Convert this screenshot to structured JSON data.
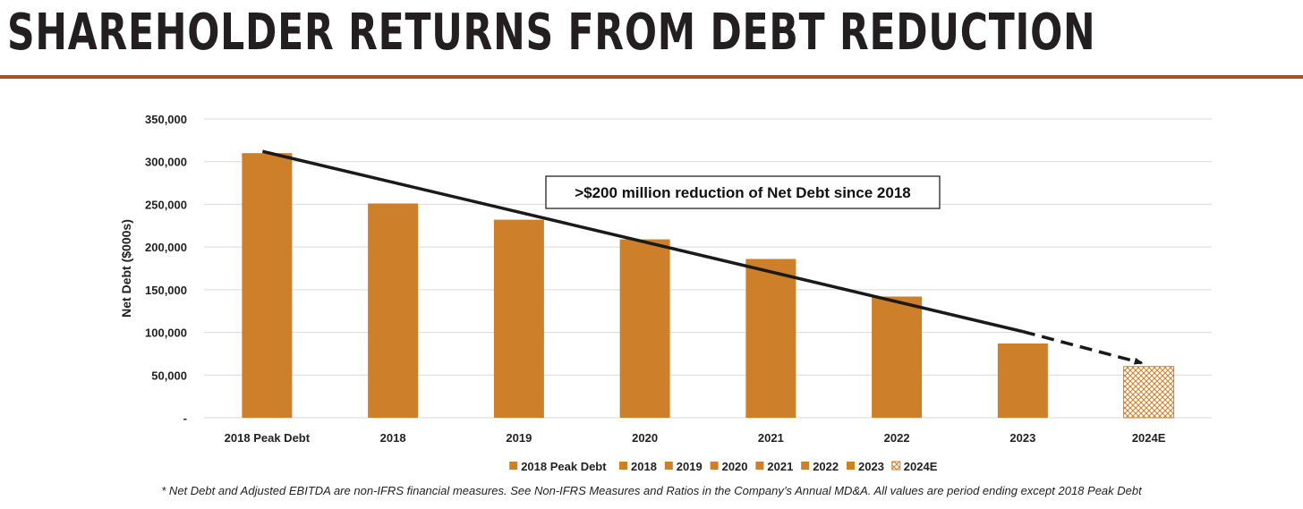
{
  "title": "SHAREHOLDER RETURNS FROM DEBT REDUCTION",
  "footnote": "* Net Debt and Adjusted EBITDA are non-IFRS financial measures. See Non-IFRS Measures and Ratios in the Company’s Annual MD&A. All values are period ending except 2018 Peak Debt",
  "colors": {
    "bar": "#cd7f2a",
    "rule": "#a0522d",
    "grid": "#d9d9d9",
    "arrow": "#1a1a1a"
  },
  "chart_data": {
    "type": "bar",
    "ylabel": "Net Debt ($000s)",
    "ylim": [
      0,
      350000
    ],
    "yticks": [
      0,
      50000,
      100000,
      150000,
      200000,
      250000,
      300000,
      350000
    ],
    "ytick_labels": [
      "-",
      "50,000",
      "100,000",
      "150,000",
      "200,000",
      "250,000",
      "300,000",
      "350,000"
    ],
    "categories": [
      "2018 Peak Debt",
      "2018",
      "2019",
      "2020",
      "2021",
      "2022",
      "2023",
      "2024E"
    ],
    "values": [
      310000,
      251000,
      232000,
      209000,
      186000,
      142000,
      87000,
      60000
    ],
    "estimated": [
      false,
      false,
      false,
      false,
      false,
      false,
      false,
      true
    ],
    "legend": [
      "2018 Peak Debt",
      "2018",
      "2019",
      "2020",
      "2021",
      "2022",
      "2023",
      "2024E"
    ],
    "legend_position": "bottom",
    "grid": true,
    "annotation": {
      "text": ">$200 million reduction of Net Debt since 2018",
      "trend_start": {
        "category": "2018 Peak Debt",
        "value": 312000
      },
      "trend_solid_end": {
        "category": "2023",
        "value": 101000
      },
      "trend_end": {
        "category": "2024E",
        "value": 60000
      }
    }
  }
}
